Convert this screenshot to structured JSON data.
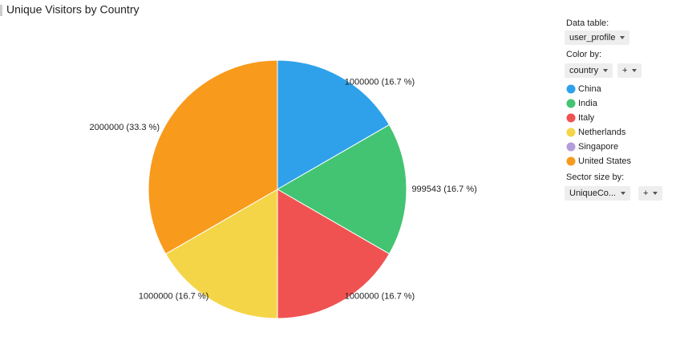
{
  "chart_data": {
    "type": "pie",
    "title": "Unique Visitors by Country",
    "categories": [
      "China",
      "India",
      "Italy",
      "Netherlands",
      "Singapore",
      "United States"
    ],
    "values": [
      1000000,
      999543,
      1000000,
      1000000,
      null,
      2000000
    ],
    "value_labels": [
      "1000000 (16.7 %)",
      "999543 (16.7 %)",
      "1000000 (16.7 %)",
      "1000000 (16.7 %)",
      null,
      "2000000 (33.3 %)"
    ],
    "colors": [
      "#2ea1ea",
      "#42c472",
      "#f05252",
      "#f4d547",
      "#b39ddb",
      "#f89a1c"
    ],
    "legend": "right"
  },
  "controls": {
    "data_table_label": "Data table:",
    "data_table": "user_profile",
    "color_by_label": "Color by:",
    "color_by": "country",
    "add": "+",
    "sector_size_label": "Sector size by:",
    "sector_size": "UniqueCo..."
  }
}
